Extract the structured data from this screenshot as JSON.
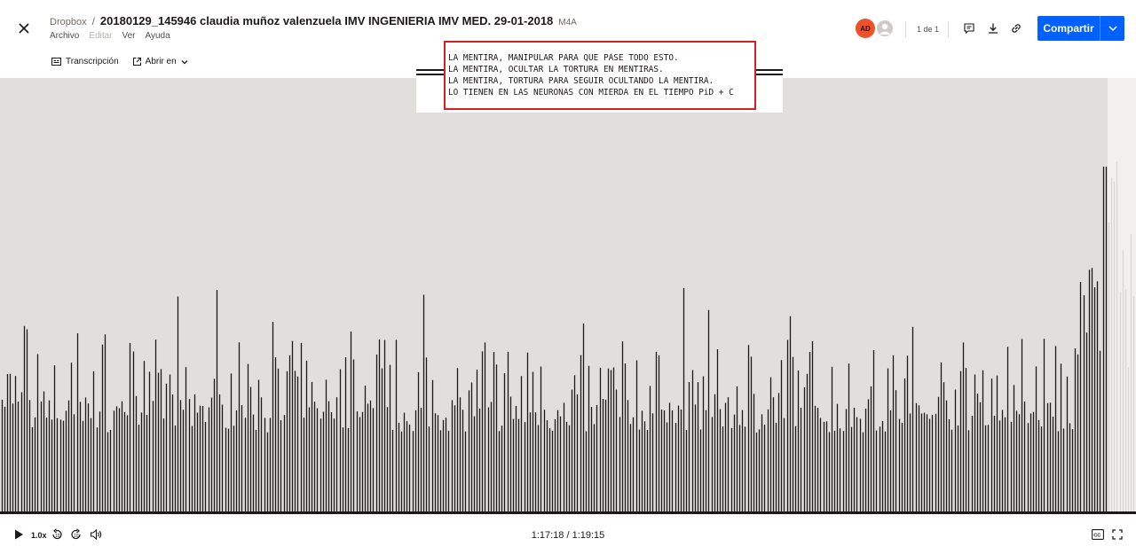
{
  "header": {
    "root": "Dropbox",
    "separator": "/",
    "file_name": "20180129_145946 claudia muñoz valenzuela IMV INGENIERIA IMV MED. 29-01-2018",
    "file_ext": "M4A",
    "menu": [
      "Archivo",
      "Editar",
      "Ver",
      "Ayuda"
    ],
    "transcription_label": "Transcripción",
    "open_in_label": "Abrir en",
    "avatar_initials": "AD",
    "page_count": "1 de 1",
    "share_label": "Compartir",
    "icons": [
      "close-icon",
      "transcript-icon",
      "external-icon",
      "chevron-down-icon",
      "comment-icon",
      "download-icon",
      "link-icon"
    ]
  },
  "overlay": {
    "lines": [
      "LA MENTIRA, MANIPULAR PARA QUE PASE TODO ESTO.",
      "LA MENTIRA, OCULTAR LA TORTURA EN MENTIRAS.",
      "LA MENTIRA, TORTURA PARA SEGUIR OCULTANDO LA MENTIRA.",
      "LO TIENEN EN LAS NEURONAS CON MIERDA EN EL TIEMPO PiD + C"
    ],
    "border_color": "#d81f26"
  },
  "player": {
    "speed": "1.0x",
    "time": "1:17:18 / 1:19:15",
    "progress_fraction": 0.975,
    "icons": [
      "play-icon",
      "rewind-icon",
      "forward-icon",
      "volume-icon",
      "captions-icon",
      "fullscreen-icon"
    ]
  },
  "colors": {
    "accent": "#0061fe",
    "avatar": "#f0512a",
    "waveform_bg": "#e1dedb",
    "bars": "#1e1919"
  }
}
